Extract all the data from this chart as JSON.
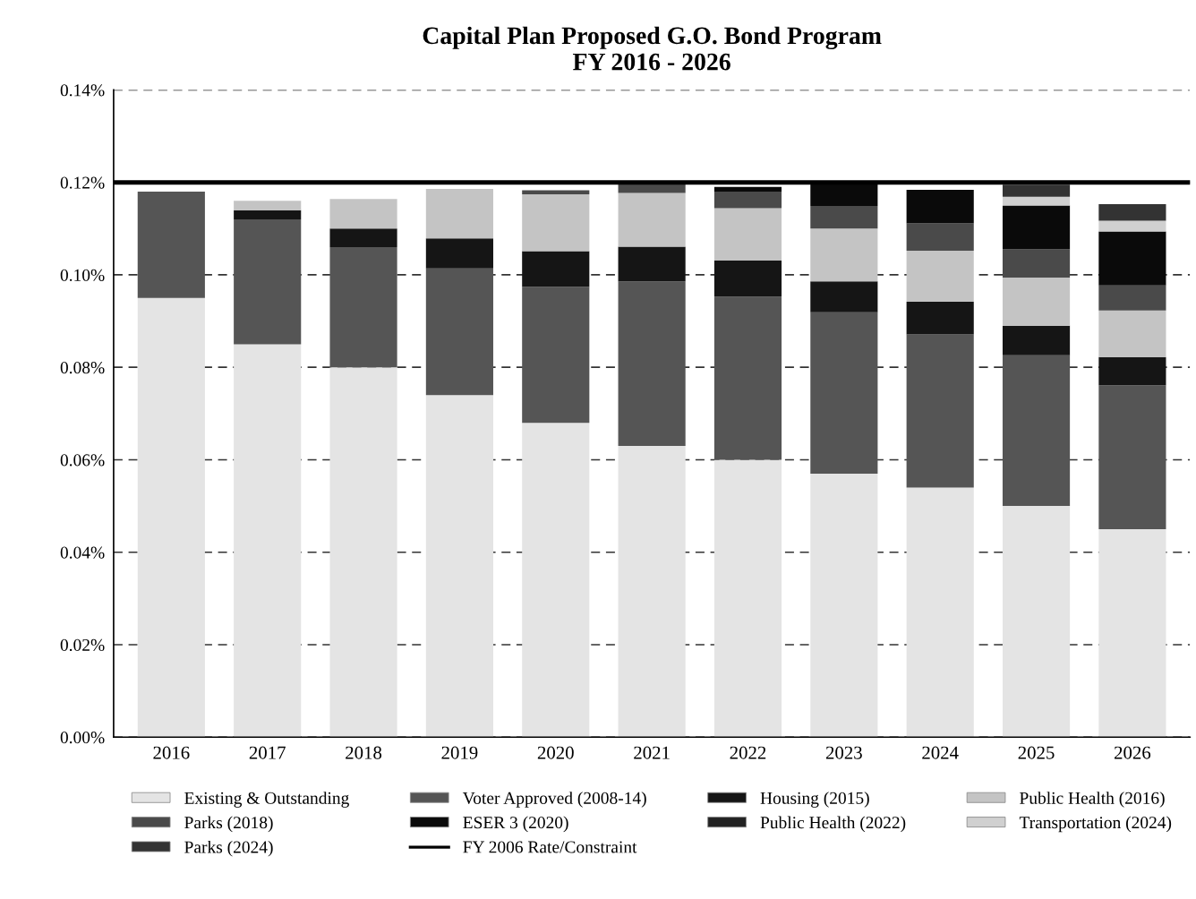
{
  "chart_data": {
    "type": "bar",
    "stacked": true,
    "title": "Capital Plan Proposed G.O. Bond Program\nFY 2016 - 2026",
    "categories": [
      "2016",
      "2017",
      "2018",
      "2019",
      "2020",
      "2021",
      "2022",
      "2023",
      "2024",
      "2025",
      "2026"
    ],
    "series": [
      {
        "name": "Existing & Outstanding",
        "color": "#e4e4e4",
        "values": [
          0.095,
          0.085,
          0.08,
          0.074,
          0.068,
          0.063,
          0.06,
          0.057,
          0.054,
          0.05,
          0.045
        ]
      },
      {
        "name": "Voter Approved (2008-14)",
        "color": "#555555",
        "values": [
          0.023,
          0.027,
          0.026,
          0.0274,
          0.0294,
          0.0356,
          0.0353,
          0.0349,
          0.0331,
          0.0326,
          0.0311
        ]
      },
      {
        "name": "Housing (2015)",
        "color": "#151515",
        "values": [
          0,
          0.002,
          0.004,
          0.0065,
          0.0077,
          0.0075,
          0.0078,
          0.0067,
          0.0071,
          0.0064,
          0.0061
        ]
      },
      {
        "name": "Public Health (2016)",
        "color": "#c4c4c4",
        "values": [
          0,
          0.002,
          0.0064,
          0.0107,
          0.0123,
          0.0116,
          0.0113,
          0.0114,
          0.011,
          0.0104,
          0.0101
        ]
      },
      {
        "name": "Parks (2018)",
        "color": "#4a4a4a",
        "values": [
          0,
          0,
          0,
          0,
          0.0009,
          0.0022,
          0.0036,
          0.0049,
          0.0059,
          0.0061,
          0.0054
        ]
      },
      {
        "name": "ESER 3 (2020)",
        "color": "#0a0a0a",
        "values": [
          0,
          0,
          0,
          0,
          0,
          0,
          0.001,
          0.0048,
          0.0073,
          0.0095,
          0.0117
        ]
      },
      {
        "name": "Public Health (2022)",
        "color": "#222222",
        "values": [
          0,
          0,
          0,
          0,
          0,
          0,
          0,
          0,
          0,
          0,
          0
        ]
      },
      {
        "name": "Transportation (2024)",
        "color": "#d0d0d0",
        "values": [
          0,
          0,
          0,
          0,
          0,
          0,
          0,
          0,
          0,
          0.0019,
          0.0023
        ]
      },
      {
        "name": "Parks (2024)",
        "color": "#333333",
        "values": [
          0,
          0,
          0,
          0,
          0,
          0,
          0,
          0,
          0,
          0.0026,
          0.0036
        ]
      }
    ],
    "ref_lines": [
      {
        "axis": "y",
        "value": 0.12,
        "label": "FY 2006 Rate/Constraint",
        "color": "#000000",
        "line_style": "solid"
      }
    ],
    "ylim": [
      0,
      0.14
    ],
    "yticks": [
      {
        "value": 0,
        "label": "0.00%"
      },
      {
        "value": 0.02,
        "label": "0.02%"
      },
      {
        "value": 0.04,
        "label": "0.04%"
      },
      {
        "value": 0.06,
        "label": "0.06%"
      },
      {
        "value": 0.08,
        "label": "0.08%"
      },
      {
        "value": 0.1,
        "label": "0.10%"
      },
      {
        "value": 0.12,
        "label": "0.12%"
      },
      {
        "value": 0.14,
        "label": "0.14%"
      }
    ],
    "grid": "y",
    "legend": "bottom"
  }
}
